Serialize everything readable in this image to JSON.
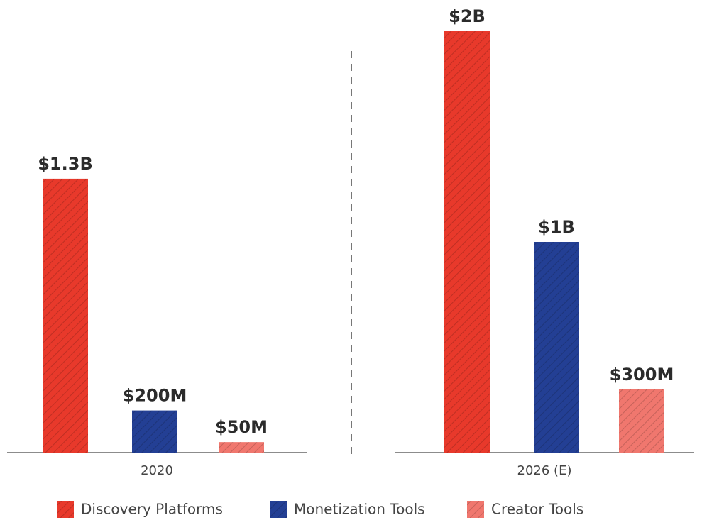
{
  "chart_data": {
    "type": "bar",
    "categories": [
      "2020",
      "2026 (E)"
    ],
    "series": [
      {
        "name": "Discovery Platforms",
        "color": "#e8392b",
        "values": [
          1300000000,
          2000000000
        ],
        "value_labels": [
          "$1.3B",
          "$2B"
        ]
      },
      {
        "name": "Monetization Tools",
        "color": "#233f94",
        "values": [
          200000000,
          1000000000
        ],
        "value_labels": [
          "$200M",
          "$1B"
        ]
      },
      {
        "name": "Creator Tools",
        "color": "#f0776e",
        "values": [
          50000000,
          300000000
        ],
        "value_labels": [
          "$50M",
          "$300M"
        ]
      }
    ]
  }
}
